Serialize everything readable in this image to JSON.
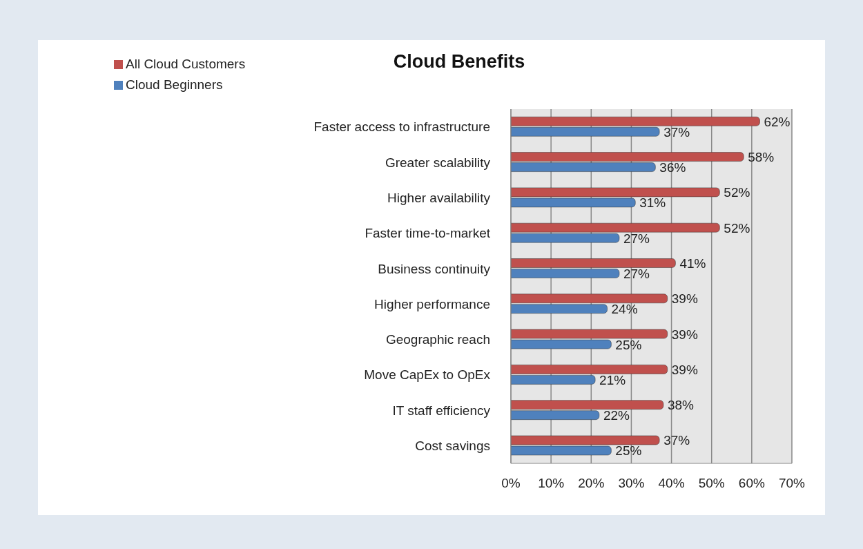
{
  "chart_data": {
    "type": "bar",
    "orientation": "horizontal",
    "title": "Cloud Benefits",
    "categories": [
      "Faster access to infrastructure",
      "Greater scalability",
      "Higher availability",
      "Faster time-to-market",
      "Business continuity",
      "Higher performance",
      "Geographic reach",
      "Move CapEx to OpEx",
      "IT staff efficiency",
      "Cost savings"
    ],
    "series": [
      {
        "name": "All Cloud Customers",
        "color": "#c0504d",
        "values": [
          62,
          58,
          52,
          52,
          41,
          39,
          39,
          39,
          38,
          37
        ],
        "value_labels": [
          "62%",
          "58%",
          "52%",
          "52%",
          "41%",
          "39%",
          "39%",
          "39%",
          "38%",
          "37%"
        ]
      },
      {
        "name": "Cloud Beginners",
        "color": "#4f81bd",
        "values": [
          37,
          36,
          31,
          27,
          27,
          24,
          25,
          21,
          22,
          25
        ],
        "value_labels": [
          "37%",
          "36%",
          "31%",
          "27%",
          "27%",
          "24%",
          "25%",
          "21%",
          "22%",
          "25%"
        ]
      }
    ],
    "xlim": [
      0,
      70
    ],
    "xticks": [
      {
        "value": 0,
        "label": "0%"
      },
      {
        "value": 10,
        "label": "10%"
      },
      {
        "value": 20,
        "label": "20%"
      },
      {
        "value": 30,
        "label": "30%"
      },
      {
        "value": 40,
        "label": "40%"
      },
      {
        "value": 50,
        "label": "50%"
      },
      {
        "value": 60,
        "label": "60%"
      },
      {
        "value": 70,
        "label": "70%"
      }
    ],
    "grid": "x",
    "legend": "top left"
  }
}
